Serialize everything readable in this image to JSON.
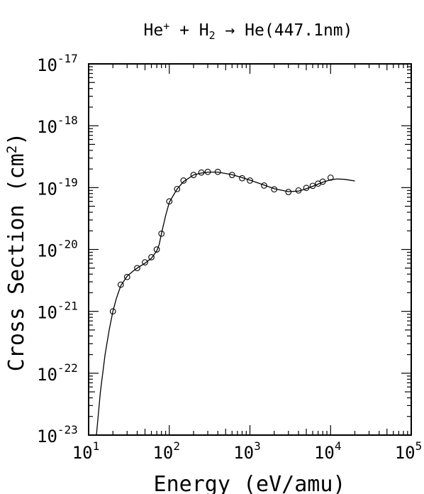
{
  "chart_data": {
    "type": "scatter",
    "title": {
      "base": "He",
      "sup": "+",
      "mid": " + H",
      "sub": "2",
      "tail": " → He(447.1nm)"
    },
    "xlabel": "Energy (eV/amu)",
    "ylabel": {
      "base": "Cross Section (cm",
      "sup": "2",
      "tail": ")"
    },
    "x_scale": "log",
    "y_scale": "log",
    "xlim": [
      10,
      100000
    ],
    "ylim": [
      1e-23,
      1e-17
    ],
    "x_ticks": [
      {
        "value": 10,
        "base": "10",
        "exp": "1"
      },
      {
        "value": 100,
        "base": "10",
        "exp": "2"
      },
      {
        "value": 1000,
        "base": "10",
        "exp": "3"
      },
      {
        "value": 10000,
        "base": "10",
        "exp": "4"
      },
      {
        "value": 100000,
        "base": "10",
        "exp": "5"
      }
    ],
    "y_ticks": [
      {
        "value": 1e-17,
        "base": "10",
        "exp": "-17"
      },
      {
        "value": 1e-18,
        "base": "10",
        "exp": "-18"
      },
      {
        "value": 1e-19,
        "base": "10",
        "exp": "-19"
      },
      {
        "value": 1e-20,
        "base": "10",
        "exp": "-20"
      },
      {
        "value": 1e-21,
        "base": "10",
        "exp": "-21"
      },
      {
        "value": 1e-22,
        "base": "10",
        "exp": "-22"
      },
      {
        "value": 1e-23,
        "base": "10",
        "exp": "-23"
      }
    ],
    "grid": false,
    "series": [
      {
        "kind": "markers",
        "marker": "open-circle",
        "x": [
          20,
          25,
          30,
          40,
          50,
          60,
          70,
          80,
          100,
          125,
          150,
          200,
          250,
          300,
          400,
          600,
          800,
          1000,
          1500,
          2000,
          3000,
          4000,
          5000,
          6000,
          7000,
          8000,
          10000
        ],
        "y": [
          1e-21,
          2.7e-21,
          3.6e-21,
          5e-21,
          6.2e-21,
          7.5e-21,
          1e-20,
          1.8e-20,
          6e-20,
          9.5e-20,
          1.3e-19,
          1.6e-19,
          1.75e-19,
          1.8e-19,
          1.8e-19,
          1.6e-19,
          1.42e-19,
          1.3e-19,
          1.08e-19,
          9.4e-20,
          8.5e-20,
          9e-20,
          9.9e-20,
          1.07e-19,
          1.16e-19,
          1.25e-19,
          1.45e-19
        ]
      },
      {
        "kind": "line",
        "x": [
          12.5,
          14,
          16,
          18,
          20,
          22,
          25,
          30,
          35,
          40,
          50,
          60,
          70,
          75,
          80,
          90,
          100,
          125,
          150,
          200,
          250,
          300,
          400,
          600,
          800,
          1000,
          1500,
          2000,
          3000,
          4000,
          5000,
          6000,
          7000,
          8000,
          10000,
          12000,
          15000,
          20000
        ],
        "y": [
          1e-23,
          5e-23,
          2e-22,
          5e-22,
          1e-21,
          1.6e-21,
          2.6e-21,
          3.7e-21,
          4.4e-21,
          5e-21,
          6e-21,
          7.2e-21,
          9.5e-21,
          1.2e-20,
          1.8e-20,
          3.5e-20,
          5.8e-20,
          9.5e-20,
          1.25e-19,
          1.6e-19,
          1.72e-19,
          1.78e-19,
          1.78e-19,
          1.62e-19,
          1.45e-19,
          1.32e-19,
          1.1e-19,
          9.6e-20,
          8.6e-20,
          8.8e-20,
          9.6e-20,
          1.05e-19,
          1.14e-19,
          1.22e-19,
          1.34e-19,
          1.38e-19,
          1.36e-19,
          1.28e-19
        ]
      }
    ]
  }
}
